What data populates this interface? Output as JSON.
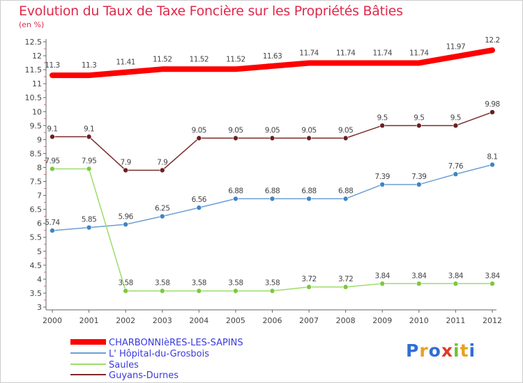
{
  "title": "Evolution du Taux de Taxe Foncière sur les Propriétés Bâties",
  "unit_label": "(en %)",
  "logo": {
    "text": "Proxiti",
    "letters": [
      "P",
      "r",
      "o",
      "x",
      "i",
      "t",
      "i"
    ],
    "colors": [
      "#2f6fd6",
      "#e8a21c",
      "#2f6fd6",
      "#e03a2a",
      "#6fc22e",
      "#e8a21c",
      "#2f6fd6"
    ]
  },
  "chart_data": {
    "type": "line",
    "title": "Evolution du Taux de Taxe Foncière sur les Propriétés Bâties",
    "ylabel": "(en %)",
    "xlabel": "",
    "x": [
      "2000",
      "2001",
      "2002",
      "2003",
      "2004",
      "2005",
      "2006",
      "2007",
      "2008",
      "2009",
      "2010",
      "2011",
      "2012"
    ],
    "ylim": [
      3,
      12.5
    ],
    "yticks": [
      "3",
      "3.5",
      "4",
      "4.5",
      "5",
      "5.5",
      "6",
      "6.5",
      "7",
      "7.5",
      "8",
      "8.5",
      "9",
      "9.5",
      "10",
      "10.5",
      "11",
      "11.5",
      "12",
      "12.5"
    ],
    "grid": false,
    "legend_position": "bottom-left",
    "series": [
      {
        "name": "CHARBONNIèRES-LES-SAPINS",
        "color": "#ff0000",
        "line_width": 8,
        "marker": "none",
        "values": [
          11.3,
          11.3,
          11.41,
          11.52,
          11.52,
          11.52,
          11.63,
          11.74,
          11.74,
          11.74,
          11.74,
          11.97,
          12.2
        ],
        "labels": [
          "11.3",
          "11.3",
          "11.41",
          "11.52",
          "11.52",
          "11.52",
          "11.63",
          "11.74",
          "11.74",
          "11.74",
          "11.74",
          "11.97",
          "12.2"
        ]
      },
      {
        "name": "L' Hôpital-du-Grosbois",
        "color": "#6a9fd4",
        "marker_color": "#3d85c6",
        "line_width": 1.5,
        "marker": "circle",
        "values": [
          5.74,
          5.85,
          5.96,
          6.25,
          6.56,
          6.88,
          6.88,
          6.88,
          6.88,
          7.39,
          7.39,
          7.76,
          8.1
        ],
        "labels": [
          "5.74",
          "5.85",
          "5.96",
          "6.25",
          "6.56",
          "6.88",
          "6.88",
          "6.88",
          "6.88",
          "7.39",
          "7.39",
          "7.76",
          "8.1"
        ]
      },
      {
        "name": "Saules",
        "color": "#9ddc6a",
        "marker_color": "#7cc93f",
        "line_width": 1.5,
        "marker": "circle",
        "values": [
          7.95,
          7.95,
          3.58,
          3.58,
          3.58,
          3.58,
          3.58,
          3.72,
          3.72,
          3.84,
          3.84,
          3.84,
          3.84
        ],
        "labels": [
          "7.95",
          "7.95",
          "3.58",
          "3.58",
          "3.58",
          "3.58",
          "3.58",
          "3.72",
          "3.72",
          "3.84",
          "3.84",
          "3.84",
          "3.84"
        ]
      },
      {
        "name": "Guyans-Durnes",
        "color": "#7a2a2a",
        "marker_color": "#6b1f1f",
        "line_width": 1.5,
        "marker": "circle",
        "values": [
          9.1,
          9.1,
          7.9,
          7.9,
          9.05,
          9.05,
          9.05,
          9.05,
          9.05,
          9.5,
          9.5,
          9.5,
          9.98
        ],
        "labels": [
          "9.1",
          "9.1",
          "7.9",
          "7.9",
          "9.05",
          "9.05",
          "9.05",
          "9.05",
          "9.05",
          "9.5",
          "9.5",
          "9.5",
          "9.98"
        ]
      }
    ]
  }
}
